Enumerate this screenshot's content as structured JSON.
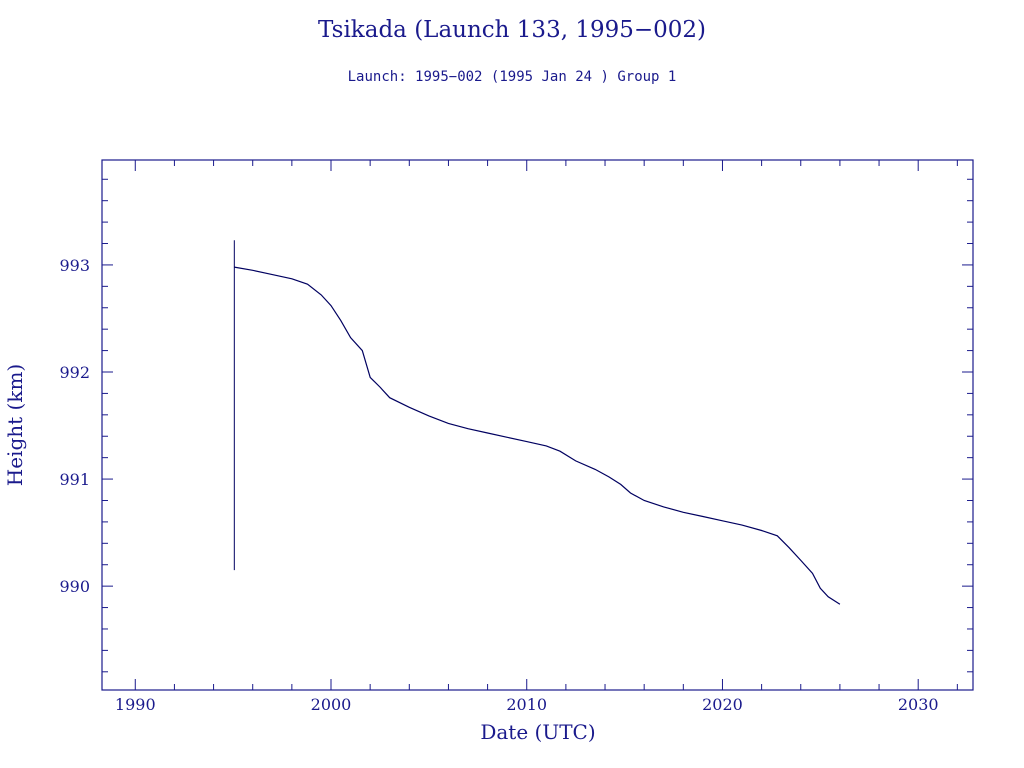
{
  "chart_data": {
    "type": "line",
    "title": "Tsikada (Launch 133, 1995−002)",
    "subtitle": "Launch: 1995−002  (1995 Jan 24 )  Group 1",
    "xlabel": "Date (UTC)",
    "ylabel": "Height (km)",
    "xlim": [
      1988.3,
      2032.8
    ],
    "ylim": [
      989.03,
      993.98
    ],
    "x_ticks": [
      "1990",
      "2000",
      "2010",
      "2020",
      "2030"
    ],
    "y_ticks": [
      "990",
      "991",
      "992",
      "993"
    ],
    "launch_marker": {
      "x": 1995.06,
      "y_range": [
        990.15,
        993.23
      ]
    },
    "series": [
      {
        "x": [
          1995.06,
          1996.0,
          1997.0,
          1998.0,
          1998.8,
          1999.5,
          2000.0,
          2000.5,
          2001.0,
          2001.6,
          2002.0,
          2002.5,
          2003.0,
          2004.0,
          2005.0,
          2006.0,
          2007.0,
          2008.0,
          2009.0,
          2010.0,
          2011.0,
          2011.7,
          2012.5,
          2013.5,
          2014.2,
          2014.8,
          2015.3,
          2016.0,
          2017.0,
          2018.0,
          2019.0,
          2020.0,
          2021.0,
          2022.0,
          2022.8,
          2023.4,
          2024.0,
          2024.6,
          2025.0,
          2025.4,
          2026.0
        ],
        "y": [
          992.98,
          992.95,
          992.91,
          992.87,
          992.82,
          992.72,
          992.62,
          992.48,
          992.32,
          992.2,
          991.95,
          991.86,
          991.76,
          991.67,
          991.59,
          991.52,
          991.47,
          991.43,
          991.39,
          991.35,
          991.31,
          991.26,
          991.17,
          991.09,
          991.02,
          990.95,
          990.87,
          990.8,
          990.74,
          990.69,
          990.65,
          990.61,
          990.57,
          990.52,
          990.47,
          990.36,
          990.24,
          990.12,
          989.98,
          989.9,
          989.83
        ]
      }
    ],
    "colors": {
      "axis": "#1a1a8c",
      "data": "#000060"
    }
  }
}
